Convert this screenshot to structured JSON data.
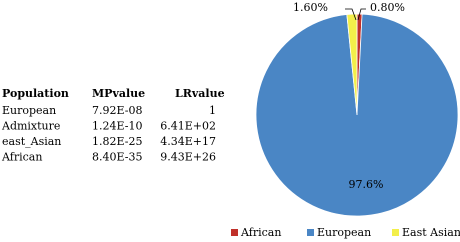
{
  "chart_data": {
    "type": "pie",
    "categories": [
      "African",
      "European",
      "East Asian"
    ],
    "values": [
      0.8,
      97.6,
      1.6
    ],
    "value_labels": [
      "0.80%",
      "97.6%",
      "1.60%"
    ],
    "colors": [
      "#c0302a",
      "#4a86c5",
      "#f3ef4a"
    ],
    "legend": "bottom"
  },
  "table": {
    "header": [
      "Population",
      "MPvalue",
      "LRvalue"
    ],
    "rows": [
      [
        "European",
        "7.92E-08",
        "1"
      ],
      [
        "Admixture",
        "1.24E-10",
        "6.41E+02"
      ],
      [
        "east_Asian",
        "1.82E-25",
        "4.34E+17"
      ],
      [
        "African",
        "8.40E-35",
        "9.43E+26"
      ]
    ]
  }
}
